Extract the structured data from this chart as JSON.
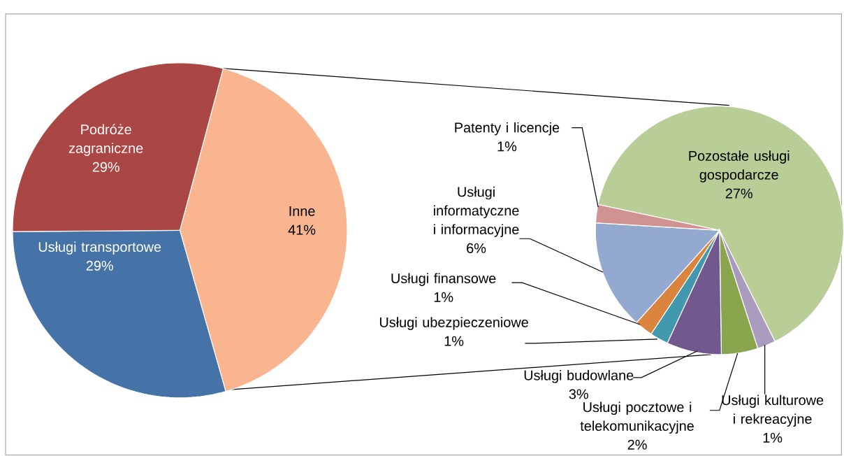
{
  "chart_data": [
    {
      "type": "pie",
      "categories": [
        "Inne",
        "Usługi transportowe",
        "Podróże zagraniczne"
      ],
      "values": [
        41,
        29,
        29
      ],
      "colors": [
        "#f9b590",
        "#4573a7",
        "#aa4643"
      ],
      "value_labels": [
        "41%",
        "29%",
        "29%"
      ]
    },
    {
      "type": "pie",
      "categories": [
        "Pozostałe usługi gospodarcze",
        "Usługi kulturowe i rekreacyjne",
        "Usługi pocztowe i telekomunikacyjne",
        "Usługi budowlane",
        "Usługi ubezpieczeniowe",
        "Usługi finansowe",
        "Usługi informatyczne i informacyjne",
        "Patenty i licencje"
      ],
      "values": [
        27,
        1,
        2,
        3,
        1,
        1,
        6,
        1
      ],
      "colors": [
        "#b9cd96",
        "#a99bbd",
        "#89a54e",
        "#71588f",
        "#4198af",
        "#db843d",
        "#93a9cf",
        "#d19392"
      ],
      "value_labels": [
        "27%",
        "1%",
        "2%",
        "3%",
        "1%",
        "1%",
        "6%",
        "1%"
      ]
    }
  ]
}
